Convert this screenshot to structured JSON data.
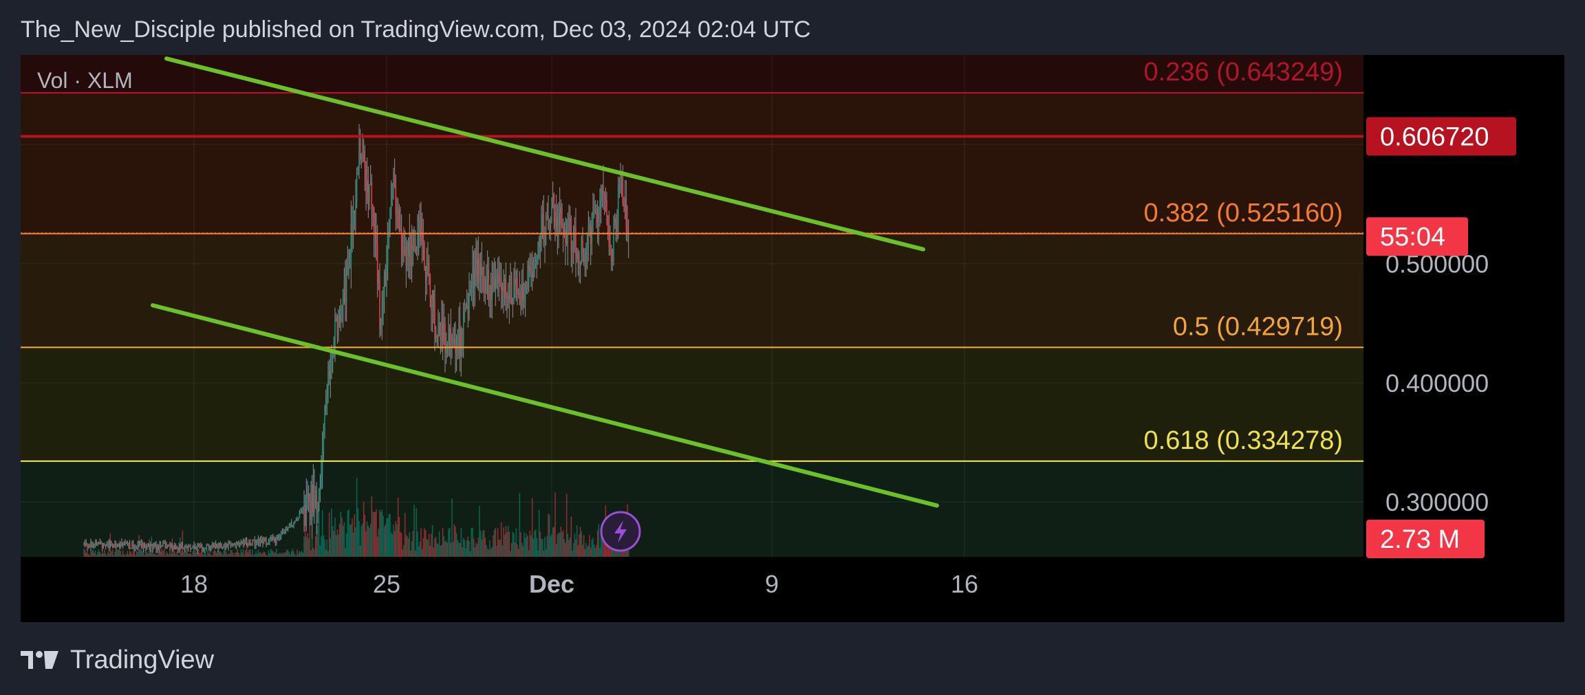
{
  "header": {
    "title": "The_New_Disciple published on TradingView.com, Dec 03, 2024 02:04 UTC"
  },
  "footer": {
    "brand": "TradingView"
  },
  "chart_data": {
    "type": "candlestick",
    "pane_label": "Vol · XLM",
    "x_ticks": [
      {
        "date": "2024-11-18",
        "label": "18",
        "bold": false
      },
      {
        "date": "2024-11-25",
        "label": "25",
        "bold": false
      },
      {
        "date": "2024-12-01",
        "label": "Dec",
        "bold": true
      },
      {
        "date": "2024-12-09",
        "label": "9",
        "bold": false
      },
      {
        "date": "2024-12-16",
        "label": "16",
        "bold": false
      }
    ],
    "x_range": [
      "2024-11-14",
      "2024-12-19"
    ],
    "y_range": [
      0.254,
      0.675
    ],
    "y_ticks": [
      {
        "value": 0.5,
        "label": "0.500000"
      },
      {
        "value": 0.4,
        "label": "0.400000"
      },
      {
        "value": 0.3,
        "label": "0.300000"
      }
    ],
    "fib_levels": [
      {
        "ratio": "0.236",
        "price": 0.643249,
        "label": "0.236 (0.643249)",
        "color": "#b2152a"
      },
      {
        "ratio": "0.382",
        "price": 0.52516,
        "label": "0.382 (0.525160)",
        "color": "#f57c2a"
      },
      {
        "ratio": "0.5",
        "price": 0.429719,
        "label": "0.5 (0.429719)",
        "color": "#f5a33c"
      },
      {
        "ratio": "0.618",
        "price": 0.334278,
        "label": "0.618 (0.334278)",
        "color": "#f0e24a"
      }
    ],
    "top_level_price": 0.68,
    "price_badges": {
      "alert_price": {
        "value": 0.60672,
        "label": "0.606720",
        "color": "#b7121f"
      },
      "countdown": {
        "value": 0.525,
        "label": "55:04",
        "color": "#f23645"
      },
      "volume": {
        "label": "2.73 M",
        "color": "#f23645"
      }
    },
    "current_price": 0.5255,
    "trendlines": [
      {
        "from": {
          "date": "2024-11-17.0",
          "price": 0.672
        },
        "to": {
          "date": "2024-12-14.5",
          "price": 0.512
        },
        "color": "#6bc228"
      },
      {
        "from": {
          "date": "2024-11-16.5",
          "price": 0.465
        },
        "to": {
          "date": "2024-12-15.0",
          "price": 0.297
        },
        "color": "#6bc228"
      }
    ],
    "candles_anchor": [
      [
        "2024-11-14.0",
        0.265
      ],
      [
        "2024-11-18.0",
        0.262
      ],
      [
        "2024-11-21.0",
        0.268
      ],
      [
        "2024-11-22.5",
        0.305
      ],
      [
        "2024-11-23.0",
        0.43
      ],
      [
        "2024-11-23.4",
        0.46
      ],
      [
        "2024-11-23.7",
        0.52
      ],
      [
        "2024-11-24.0",
        0.59
      ],
      [
        "2024-11-24.5",
        0.55
      ],
      [
        "2024-11-24.8",
        0.44
      ],
      [
        "2024-11-25.2",
        0.57
      ],
      [
        "2024-11-25.6",
        0.5
      ],
      [
        "2024-11-26.2",
        0.53
      ],
      [
        "2024-11-26.8",
        0.45
      ],
      [
        "2024-11-27.3",
        0.43
      ],
      [
        "2024-11-27.8",
        0.44
      ],
      [
        "2024-11-28.2",
        0.5
      ],
      [
        "2024-11-28.8",
        0.48
      ],
      [
        "2024-11-29.3",
        0.485
      ],
      [
        "2024-11-29.8",
        0.475
      ],
      [
        "2024-11-30.2",
        0.49
      ],
      [
        "2024-11-30.6",
        0.525
      ],
      [
        "2024-12-01.0",
        0.545
      ],
      [
        "2024-12-01.5",
        0.53
      ],
      [
        "2024-12-02.0",
        0.51
      ],
      [
        "2024-12-02.4",
        0.52
      ],
      [
        "2024-12-02.8",
        0.565
      ],
      [
        "2024-12-03.2",
        0.51
      ],
      [
        "2024-12-03.5",
        0.56
      ],
      [
        "2024-12-03.7",
        0.54
      ],
      [
        "2024-12-03.8",
        0.523
      ]
    ],
    "volume_color_up": "#089981",
    "volume_color_down": "#f23645",
    "candle_color_up": "#089981",
    "candle_color_down": "#f23645",
    "trend_color": "#6bc228",
    "icon": "lightning-icon"
  }
}
